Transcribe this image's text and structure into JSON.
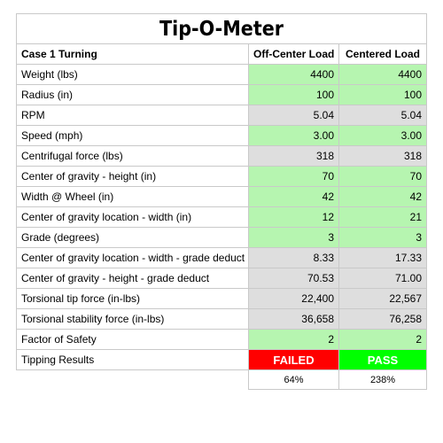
{
  "title": "Tip-O-Meter",
  "header": {
    "case": "Case 1 Turning",
    "col1": "Off-Center Load",
    "col2": "Centered Load"
  },
  "colors": {
    "input": "#b6f5b0",
    "computed": "#dedede",
    "fail": "#ff0000",
    "pass": "#00ff00"
  },
  "rows": [
    {
      "label": "Weight (lbs)",
      "off": "4400",
      "cen": "4400",
      "style": "green"
    },
    {
      "label": "Radius (in)",
      "off": "100",
      "cen": "100",
      "style": "green"
    },
    {
      "label": "RPM",
      "off": "5.04",
      "cen": "5.04",
      "style": "gray"
    },
    {
      "label": "Speed (mph)",
      "off": "3.00",
      "cen": "3.00",
      "style": "green"
    },
    {
      "label": "Centrifugal force (lbs)",
      "off": "318",
      "cen": "318",
      "style": "gray"
    },
    {
      "label": "Center of gravity - height (in)",
      "off": "70",
      "cen": "70",
      "style": "green"
    },
    {
      "label": "Width @ Wheel (in)",
      "off": "42",
      "cen": "42",
      "style": "green"
    },
    {
      "label": "Center of gravity location - width (in)",
      "off": "12",
      "cen": "21",
      "style": "green"
    },
    {
      "label": "Grade (degrees)",
      "off": "3",
      "cen": "3",
      "style": "green"
    },
    {
      "label": "Center of gravity location - width - grade deduct",
      "off": "8.33",
      "cen": "17.33",
      "style": "gray"
    },
    {
      "label": "Center of gravity - height - grade deduct",
      "off": "70.53",
      "cen": "71.00",
      "style": "gray"
    },
    {
      "label": "Torsional tip force (in-lbs)",
      "off": "22,400",
      "cen": "22,567",
      "style": "gray"
    },
    {
      "label": "Torsional stability force (in-lbs)",
      "off": "36,658",
      "cen": "76,258",
      "style": "gray"
    },
    {
      "label": "Factor of Safety",
      "off": "2",
      "cen": "2",
      "style": "green"
    }
  ],
  "results": {
    "label": "Tipping Results",
    "off": "FAILED",
    "cen": "PASS",
    "off_pct": "64%",
    "cen_pct": "238%"
  }
}
